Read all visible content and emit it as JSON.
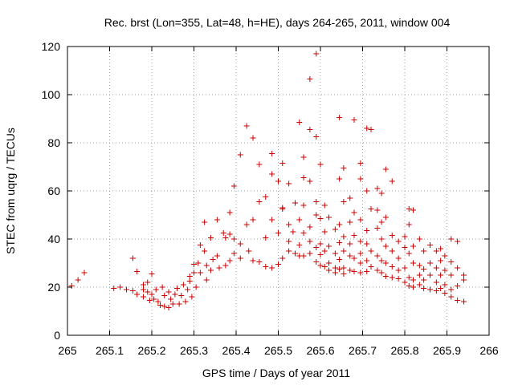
{
  "chart_data": {
    "type": "scatter",
    "title": "Rec. brst (Lon=355, Lat=48, h=HE), days 264-265, 2011, window 004",
    "xlabel": "GPS time / Days of year 2011",
    "ylabel": "STEC from uqrg / TECUs",
    "xlim": [
      265,
      266
    ],
    "ylim": [
      0,
      120
    ],
    "x_ticks": [
      "265",
      "265.1",
      "265.2",
      "265.3",
      "265.4",
      "265.5",
      "265.6",
      "265.7",
      "265.8",
      "265.9",
      "266"
    ],
    "y_ticks": [
      "0",
      "20",
      "40",
      "60",
      "80",
      "100",
      "120"
    ],
    "x_tick_values": [
      265,
      265.1,
      265.2,
      265.3,
      265.4,
      265.5,
      265.6,
      265.7,
      265.8,
      265.9,
      266
    ],
    "y_tick_values": [
      0,
      20,
      40,
      60,
      80,
      100,
      120
    ],
    "grid": true,
    "marker": "+",
    "color": "#cc0000",
    "series": [
      {
        "points": [
          [
            265.01,
            20.5
          ],
          [
            265.025,
            23
          ],
          [
            265.04,
            26
          ],
          [
            265.11,
            19.5
          ],
          [
            265.125,
            20
          ],
          [
            265.14,
            19
          ],
          [
            265.155,
            18.5
          ],
          [
            265.155,
            32
          ],
          [
            265.165,
            26.5
          ],
          [
            265.165,
            17
          ],
          [
            265.18,
            21
          ],
          [
            265.18,
            19
          ],
          [
            265.18,
            16
          ],
          [
            265.19,
            22
          ],
          [
            265.19,
            18
          ],
          [
            265.195,
            14.5
          ],
          [
            265.2,
            25.5
          ],
          [
            265.2,
            17
          ],
          [
            265.205,
            15
          ],
          [
            265.21,
            19
          ],
          [
            265.215,
            14
          ],
          [
            265.22,
            12.5
          ],
          [
            265.225,
            20
          ],
          [
            265.23,
            16.5
          ],
          [
            265.23,
            12
          ],
          [
            265.24,
            18
          ],
          [
            265.24,
            11.5
          ],
          [
            265.245,
            15
          ],
          [
            265.25,
            13
          ],
          [
            265.255,
            17
          ],
          [
            265.26,
            19.5
          ],
          [
            265.265,
            13
          ],
          [
            265.27,
            16.5
          ],
          [
            265.275,
            21
          ],
          [
            265.28,
            14
          ],
          [
            265.285,
            19
          ],
          [
            265.29,
            24.5
          ],
          [
            265.29,
            22.5
          ],
          [
            265.295,
            16
          ],
          [
            265.3,
            29.5
          ],
          [
            265.3,
            26
          ],
          [
            265.305,
            20
          ],
          [
            265.31,
            30
          ],
          [
            265.315,
            37.5
          ],
          [
            265.315,
            26
          ],
          [
            265.325,
            47
          ],
          [
            265.325,
            35
          ],
          [
            265.33,
            29
          ],
          [
            265.33,
            23
          ],
          [
            265.34,
            40.5
          ],
          [
            265.34,
            27
          ],
          [
            265.345,
            31.5
          ],
          [
            265.355,
            48
          ],
          [
            265.355,
            33
          ],
          [
            265.36,
            28
          ],
          [
            265.37,
            42.5
          ],
          [
            265.375,
            40.5
          ],
          [
            265.375,
            29
          ],
          [
            265.385,
            51
          ],
          [
            265.385,
            42
          ],
          [
            265.385,
            31
          ],
          [
            265.395,
            62
          ],
          [
            265.395,
            40
          ],
          [
            265.395,
            34
          ],
          [
            265.41,
            75
          ],
          [
            265.41,
            38
          ],
          [
            265.41,
            32
          ],
          [
            265.425,
            87
          ],
          [
            265.425,
            46
          ],
          [
            265.43,
            35
          ],
          [
            265.44,
            82
          ],
          [
            265.44,
            48
          ],
          [
            265.44,
            31
          ],
          [
            265.455,
            71
          ],
          [
            265.455,
            55.5
          ],
          [
            265.455,
            30.5
          ],
          [
            265.47,
            57.5
          ],
          [
            265.47,
            40.5
          ],
          [
            265.47,
            28.5
          ],
          [
            265.485,
            75.5
          ],
          [
            265.485,
            67
          ],
          [
            265.485,
            48
          ],
          [
            265.485,
            28
          ],
          [
            265.5,
            64
          ],
          [
            265.5,
            42.5
          ],
          [
            265.5,
            29.5
          ],
          [
            265.51,
            71.5
          ],
          [
            265.51,
            53
          ],
          [
            265.51,
            52.5
          ],
          [
            265.51,
            32
          ],
          [
            265.525,
            63
          ],
          [
            265.525,
            46
          ],
          [
            265.525,
            39
          ],
          [
            265.525,
            35
          ],
          [
            265.535,
            43
          ],
          [
            265.54,
            55
          ],
          [
            265.54,
            34
          ],
          [
            265.55,
            88.5
          ],
          [
            265.55,
            48
          ],
          [
            265.55,
            37.5
          ],
          [
            265.55,
            33
          ],
          [
            265.56,
            74
          ],
          [
            265.56,
            65.5
          ],
          [
            265.56,
            54
          ],
          [
            265.56,
            42.5
          ],
          [
            265.56,
            33
          ],
          [
            265.575,
            106.5
          ],
          [
            265.575,
            85.5
          ],
          [
            265.575,
            64
          ],
          [
            265.575,
            45
          ],
          [
            265.575,
            39
          ],
          [
            265.575,
            34
          ],
          [
            265.59,
            117
          ],
          [
            265.59,
            82.5
          ],
          [
            265.59,
            55.5
          ],
          [
            265.59,
            50
          ],
          [
            265.59,
            36.5
          ],
          [
            265.59,
            30.5
          ],
          [
            265.6,
            71
          ],
          [
            265.6,
            48.5
          ],
          [
            265.6,
            38
          ],
          [
            265.6,
            33.5
          ],
          [
            265.6,
            29
          ],
          [
            265.61,
            54
          ],
          [
            265.61,
            43
          ],
          [
            265.61,
            35
          ],
          [
            265.61,
            28.5
          ],
          [
            265.62,
            49
          ],
          [
            265.62,
            37
          ],
          [
            265.62,
            30
          ],
          [
            265.62,
            27
          ],
          [
            265.635,
            44
          ],
          [
            265.635,
            34
          ],
          [
            265.635,
            28
          ],
          [
            265.635,
            26
          ],
          [
            265.645,
            90.5
          ],
          [
            265.645,
            65
          ],
          [
            265.645,
            46
          ],
          [
            265.645,
            38.5
          ],
          [
            265.645,
            31.5
          ],
          [
            265.645,
            27.5
          ],
          [
            265.655,
            69.5
          ],
          [
            265.655,
            55.5
          ],
          [
            265.655,
            41
          ],
          [
            265.655,
            35
          ],
          [
            265.655,
            28
          ],
          [
            265.655,
            25.5
          ],
          [
            265.67,
            57
          ],
          [
            265.67,
            47
          ],
          [
            265.67,
            38
          ],
          [
            265.67,
            33
          ],
          [
            265.67,
            27
          ],
          [
            265.68,
            89.5
          ],
          [
            265.68,
            51
          ],
          [
            265.68,
            41.5
          ],
          [
            265.68,
            32
          ],
          [
            265.68,
            26.5
          ],
          [
            265.695,
            71.5
          ],
          [
            265.695,
            65
          ],
          [
            265.695,
            48
          ],
          [
            265.695,
            39
          ],
          [
            265.695,
            34
          ],
          [
            265.695,
            30
          ],
          [
            265.695,
            26
          ],
          [
            265.71,
            86
          ],
          [
            265.71,
            60
          ],
          [
            265.71,
            43.5
          ],
          [
            265.71,
            38
          ],
          [
            265.71,
            31
          ],
          [
            265.71,
            26.5
          ],
          [
            265.72,
            85.5
          ],
          [
            265.72,
            52.5
          ],
          [
            265.72,
            35
          ],
          [
            265.72,
            28.5
          ],
          [
            265.735,
            61
          ],
          [
            265.735,
            52
          ],
          [
            265.735,
            44.5
          ],
          [
            265.735,
            33
          ],
          [
            265.735,
            27
          ],
          [
            265.745,
            59
          ],
          [
            265.745,
            47
          ],
          [
            265.745,
            40
          ],
          [
            265.745,
            31
          ],
          [
            265.745,
            26
          ],
          [
            265.755,
            69
          ],
          [
            265.755,
            49
          ],
          [
            265.755,
            37
          ],
          [
            265.755,
            30
          ],
          [
            265.755,
            24.5
          ],
          [
            265.77,
            64
          ],
          [
            265.77,
            41.5
          ],
          [
            265.77,
            35
          ],
          [
            265.77,
            28.5
          ],
          [
            265.77,
            24
          ],
          [
            265.785,
            39
          ],
          [
            265.785,
            32
          ],
          [
            265.785,
            27
          ],
          [
            265.785,
            23.5
          ],
          [
            265.8,
            41
          ],
          [
            265.8,
            36.5
          ],
          [
            265.8,
            28
          ],
          [
            265.8,
            22
          ],
          [
            265.81,
            52.5
          ],
          [
            265.81,
            46
          ],
          [
            265.81,
            34
          ],
          [
            265.81,
            24
          ],
          [
            265.81,
            20.5
          ],
          [
            265.82,
            52
          ],
          [
            265.82,
            37
          ],
          [
            265.82,
            30
          ],
          [
            265.82,
            23
          ],
          [
            265.82,
            20
          ],
          [
            265.835,
            40
          ],
          [
            265.835,
            29
          ],
          [
            265.835,
            25
          ],
          [
            265.835,
            21
          ],
          [
            265.845,
            35
          ],
          [
            265.845,
            27.5
          ],
          [
            265.845,
            23
          ],
          [
            265.845,
            19.5
          ],
          [
            265.86,
            37.5
          ],
          [
            265.86,
            30
          ],
          [
            265.86,
            25
          ],
          [
            265.86,
            19
          ],
          [
            265.875,
            35
          ],
          [
            265.875,
            28
          ],
          [
            265.875,
            22
          ],
          [
            265.875,
            18.5
          ],
          [
            265.885,
            36
          ],
          [
            265.885,
            31
          ],
          [
            265.885,
            25
          ],
          [
            265.885,
            19.5
          ],
          [
            265.895,
            33
          ],
          [
            265.895,
            27
          ],
          [
            265.895,
            21
          ],
          [
            265.895,
            17.5
          ],
          [
            265.91,
            40
          ],
          [
            265.91,
            30.5
          ],
          [
            265.91,
            25
          ],
          [
            265.91,
            19
          ],
          [
            265.91,
            16
          ],
          [
            265.925,
            39
          ],
          [
            265.925,
            28
          ],
          [
            265.925,
            20.5
          ],
          [
            265.925,
            14.5
          ],
          [
            265.94,
            25
          ],
          [
            265.94,
            23
          ],
          [
            265.94,
            14
          ]
        ]
      }
    ]
  }
}
